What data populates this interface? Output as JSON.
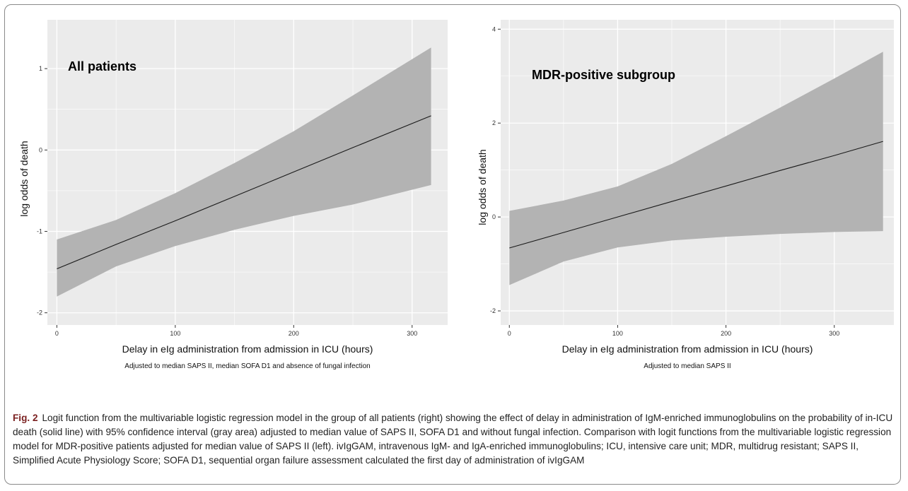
{
  "caption": {
    "label": "Fig. 2",
    "text": "Logit function from the multivariable logistic regression model in the group of all patients (right) showing the effect of delay in administration of IgM-enriched immunoglobulins on the probability of in-ICU death (solid line) with 95% confidence interval (gray area) adjusted to median value of SAPS II, SOFA D1 and without fungal infection. Comparison with logit functions from the multivariable logistic regression model for MDR-positive patients adjusted for median value of SAPS II (left). ivIgGAM, intravenous IgM- and IgA-enriched immunoglobulins; ICU, intensive care unit; MDR, multidrug resistant; SAPS II, Simplified Acute Physiology Score; SOFA D1, sequential organ failure assessment calculated the first day of administration of ivIgGAM"
  },
  "colors": {
    "panel_bg": "#ebebeb",
    "grid": "#ffffff",
    "ribbon": "#b3b3b3",
    "line": "#1a1a1a"
  },
  "chart_data": [
    {
      "type": "line",
      "title": "All patients",
      "xlabel": "Delay in eIg administration from admission in ICU (hours)",
      "ylabel": "log odds of death",
      "note": "Adjusted to median SAPS II, median SOFA D1 and absence of fungal infection",
      "xlim": [
        -8,
        330
      ],
      "ylim": [
        -2.15,
        1.6
      ],
      "xticks": [
        0,
        100,
        200,
        300
      ],
      "yticks": [
        -2,
        -1,
        0,
        1
      ],
      "grid": true,
      "legend": "none",
      "series": [
        {
          "x": [
            0,
            50,
            100,
            150,
            200,
            250,
            316
          ],
          "y": [
            -1.46,
            -1.16,
            -0.87,
            -0.57,
            -0.27,
            0.03,
            0.42
          ],
          "lower": [
            -1.8,
            -1.43,
            -1.18,
            -0.98,
            -0.81,
            -0.67,
            -0.43
          ],
          "upper": [
            -1.1,
            -0.86,
            -0.53,
            -0.16,
            0.23,
            0.67,
            1.26
          ]
        }
      ]
    },
    {
      "type": "line",
      "title": "MDR-positive subgroup",
      "xlabel": "Delay in eIg administration from admission in ICU (hours)",
      "ylabel": "log odds of death",
      "note": "Adjusted to median SAPS II",
      "xlim": [
        -8,
        355
      ],
      "ylim": [
        -2.3,
        4.2
      ],
      "xticks": [
        0,
        100,
        200,
        300
      ],
      "yticks": [
        -2,
        0,
        2,
        4
      ],
      "grid": true,
      "legend": "none",
      "series": [
        {
          "x": [
            0,
            50,
            100,
            150,
            200,
            250,
            300,
            345
          ],
          "y": [
            -0.66,
            -0.33,
            0.0,
            0.33,
            0.66,
            0.99,
            1.31,
            1.61
          ],
          "lower": [
            -1.45,
            -0.95,
            -0.65,
            -0.5,
            -0.42,
            -0.36,
            -0.32,
            -0.3
          ],
          "upper": [
            0.13,
            0.35,
            0.65,
            1.13,
            1.72,
            2.33,
            2.95,
            3.52
          ]
        }
      ]
    }
  ]
}
